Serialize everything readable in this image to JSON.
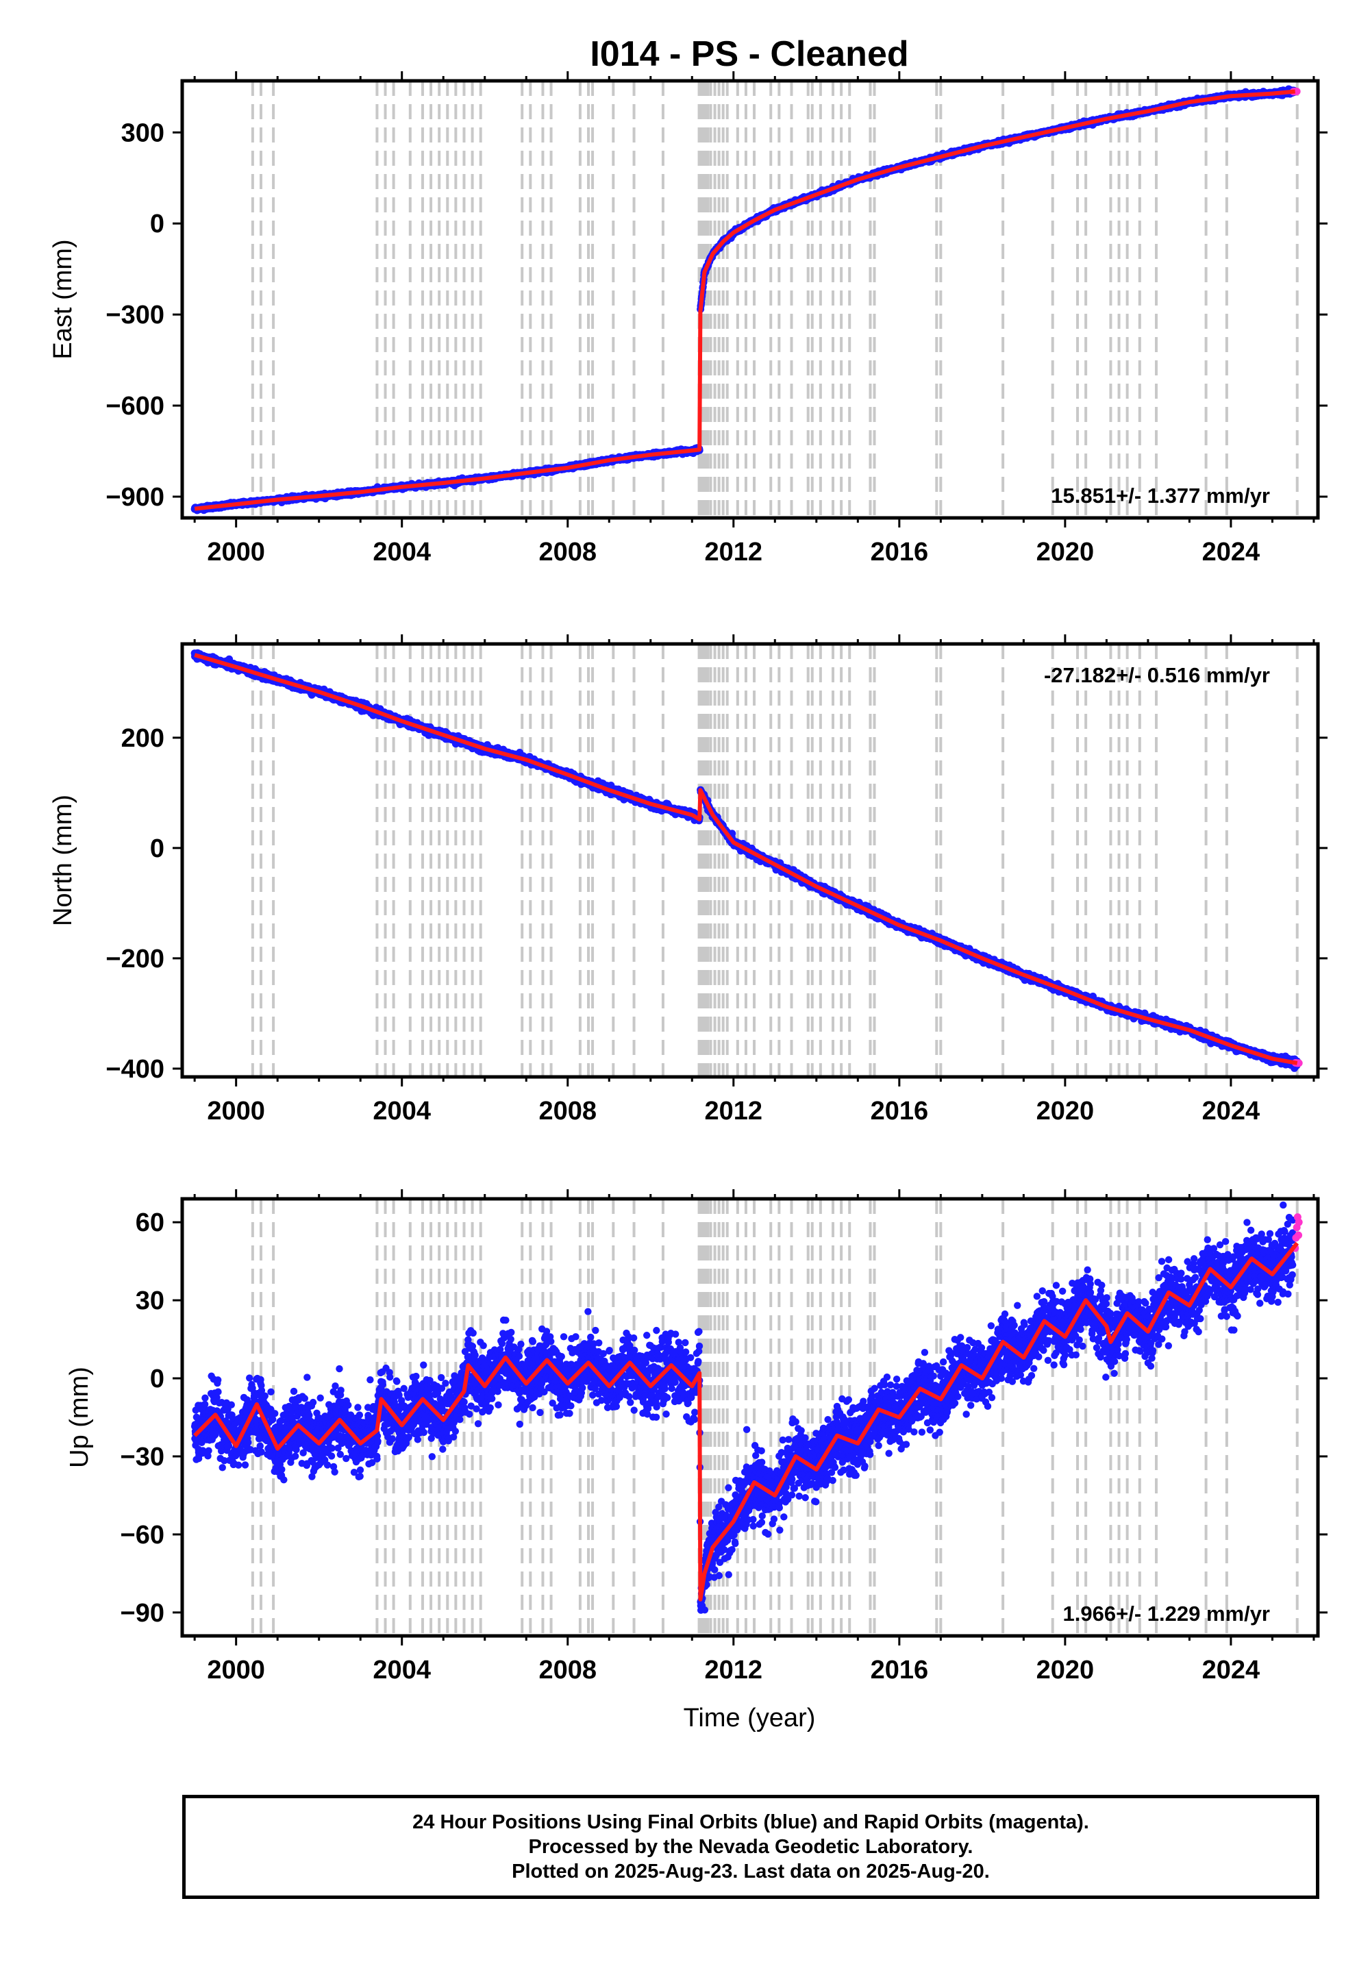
{
  "title": "I014  - PS - Cleaned",
  "colors": {
    "final_orbits": "#1a1aff",
    "rapid_orbits": "#ff33cc",
    "model": "#ff1a1a",
    "event_lines": "#c8c8c8",
    "axes": "#000000"
  },
  "caption": {
    "line1": "24 Hour Positions Using Final Orbits (blue) and Rapid Orbits (magenta).",
    "line2": "Processed by the Nevada Geodetic Laboratory.",
    "line3": "Plotted on 2025-Aug-23. Last data on 2025-Aug-20."
  },
  "event_lines_years": [
    2000.4,
    2000.6,
    2000.9,
    2003.4,
    2003.6,
    2003.8,
    2004.2,
    2004.5,
    2004.7,
    2004.9,
    2005.1,
    2005.3,
    2005.5,
    2005.7,
    2005.9,
    2006.9,
    2007.1,
    2007.4,
    2007.6,
    2008.3,
    2008.5,
    2008.6,
    2009.1,
    2009.6,
    2010.3,
    2011.17,
    2011.22,
    2011.27,
    2011.32,
    2011.38,
    2011.45,
    2011.55,
    2011.65,
    2011.75,
    2011.85,
    2012.1,
    2012.3,
    2012.5,
    2012.9,
    2013.1,
    2013.4,
    2013.8,
    2013.9,
    2014.1,
    2014.4,
    2014.6,
    2014.8,
    2015.3,
    2015.4,
    2016.9,
    2017.0,
    2018.5,
    2019.7,
    2020.3,
    2020.5,
    2021.1,
    2021.3,
    2021.5,
    2021.8,
    2022.2,
    2023.4,
    2023.9,
    2025.6
  ],
  "chart_data": [
    {
      "type": "scatter",
      "component": "east",
      "title": "I014  - PS - Cleaned",
      "xlabel": "",
      "ylabel": "East (mm)",
      "xlim": [
        1998.7,
        2026.1
      ],
      "ylim": [
        -970,
        470
      ],
      "xticks": [
        2000,
        2004,
        2008,
        2012,
        2016,
        2020,
        2024
      ],
      "xtick_labels": [
        "2000",
        "2004",
        "2008",
        "2012",
        "2016",
        "2020",
        "2024"
      ],
      "yticks": [
        -900,
        -600,
        -300,
        0,
        300
      ],
      "ytick_labels": [
        "−900",
        "−600",
        "−300",
        "0",
        "300"
      ],
      "rate_label": "15.851+/- 1.377 mm/yr",
      "series": [
        {
          "role": "daily positions (final orbits)",
          "x": [
            1999.0,
            2000.0,
            2001.0,
            2002.0,
            2003.0,
            2004.0,
            2005.0,
            2006.0,
            2007.0,
            2008.0,
            2009.0,
            2010.0,
            2011.0,
            2011.18,
            2011.2,
            2011.3,
            2011.5,
            2011.75,
            2012.0,
            2012.5,
            2013.0,
            2014.0,
            2015.0,
            2016.0,
            2017.0,
            2018.0,
            2019.0,
            2020.0,
            2021.0,
            2022.0,
            2023.0,
            2024.0,
            2025.0,
            2025.55
          ],
          "y": [
            -940,
            -925,
            -910,
            -898,
            -885,
            -868,
            -855,
            -840,
            -822,
            -805,
            -780,
            -762,
            -748,
            -745,
            -290,
            -160,
            -100,
            -60,
            -30,
            10,
            45,
            95,
            145,
            185,
            220,
            255,
            285,
            315,
            345,
            370,
            400,
            420,
            428,
            435
          ]
        },
        {
          "role": "model fit",
          "x": [
            1999.0,
            2000.0,
            2001.0,
            2002.0,
            2003.0,
            2004.0,
            2005.0,
            2006.0,
            2007.0,
            2008.0,
            2009.0,
            2010.0,
            2011.0,
            2011.18,
            2011.2,
            2011.3,
            2011.5,
            2011.75,
            2012.0,
            2012.5,
            2013.0,
            2014.0,
            2015.0,
            2016.0,
            2017.0,
            2018.0,
            2019.0,
            2020.0,
            2021.0,
            2022.0,
            2023.0,
            2024.0,
            2025.0,
            2025.55
          ],
          "y": [
            -940,
            -925,
            -910,
            -898,
            -885,
            -868,
            -855,
            -840,
            -822,
            -805,
            -780,
            -762,
            -748,
            -745,
            -290,
            -160,
            -100,
            -60,
            -30,
            10,
            45,
            95,
            145,
            185,
            220,
            255,
            285,
            315,
            345,
            370,
            400,
            420,
            428,
            435
          ]
        }
      ]
    },
    {
      "type": "scatter",
      "component": "north",
      "xlabel": "",
      "ylabel": "North (mm)",
      "xlim": [
        1998.7,
        2026.1
      ],
      "ylim": [
        -415,
        370
      ],
      "xticks": [
        2000,
        2004,
        2008,
        2012,
        2016,
        2020,
        2024
      ],
      "xtick_labels": [
        "2000",
        "2004",
        "2008",
        "2012",
        "2016",
        "2020",
        "2024"
      ],
      "yticks": [
        -400,
        -200,
        0,
        200
      ],
      "ytick_labels": [
        "−400",
        "−200",
        "0",
        "200"
      ],
      "rate_label": "-27.182+/- 0.516 mm/yr",
      "series": [
        {
          "role": "daily positions (final orbits)",
          "x": [
            1999.0,
            2000.0,
            2001.0,
            2002.0,
            2003.0,
            2004.0,
            2005.0,
            2006.0,
            2007.0,
            2008.0,
            2009.0,
            2010.0,
            2011.0,
            2011.18,
            2011.2,
            2011.5,
            2012.0,
            2013.0,
            2014.0,
            2015.0,
            2016.0,
            2017.0,
            2018.0,
            2019.0,
            2020.0,
            2021.0,
            2022.0,
            2023.0,
            2024.0,
            2025.0,
            2025.6
          ],
          "y": [
            350,
            328,
            305,
            283,
            258,
            230,
            205,
            180,
            160,
            133,
            105,
            80,
            60,
            52,
            105,
            60,
            10,
            -30,
            -70,
            -105,
            -140,
            -168,
            -200,
            -230,
            -258,
            -288,
            -310,
            -330,
            -358,
            -382,
            -390
          ]
        },
        {
          "role": "model fit",
          "x": [
            1999.0,
            2000.0,
            2001.0,
            2002.0,
            2003.0,
            2004.0,
            2005.0,
            2006.0,
            2007.0,
            2008.0,
            2009.0,
            2010.0,
            2011.0,
            2011.18,
            2011.2,
            2011.5,
            2012.0,
            2013.0,
            2014.0,
            2015.0,
            2016.0,
            2017.0,
            2018.0,
            2019.0,
            2020.0,
            2021.0,
            2022.0,
            2023.0,
            2024.0,
            2025.0,
            2025.6
          ],
          "y": [
            350,
            328,
            305,
            283,
            258,
            230,
            205,
            180,
            160,
            133,
            105,
            80,
            60,
            52,
            105,
            60,
            10,
            -30,
            -70,
            -105,
            -140,
            -168,
            -200,
            -230,
            -258,
            -288,
            -310,
            -330,
            -358,
            -382,
            -390
          ]
        }
      ]
    },
    {
      "type": "scatter",
      "component": "up",
      "xlabel": "Time (year)",
      "ylabel": "Up (mm)",
      "xlim": [
        1998.7,
        2026.1
      ],
      "ylim": [
        -99,
        69
      ],
      "xticks": [
        2000,
        2004,
        2008,
        2012,
        2016,
        2020,
        2024
      ],
      "xtick_labels": [
        "2000",
        "2004",
        "2008",
        "2012",
        "2016",
        "2020",
        "2024"
      ],
      "yticks": [
        -90,
        -60,
        -30,
        0,
        30,
        60
      ],
      "ytick_labels": [
        "−90",
        "−60",
        "−30",
        "0",
        "30",
        "60"
      ],
      "rate_label": "1.966+/- 1.229 mm/yr",
      "series": [
        {
          "role": "model fit",
          "x": [
            1999.0,
            1999.5,
            2000.0,
            2000.5,
            2001.0,
            2001.5,
            2002.0,
            2002.5,
            2003.0,
            2003.4,
            2003.5,
            2004.0,
            2004.5,
            2005.0,
            2005.5,
            2005.6,
            2006.0,
            2006.5,
            2007.0,
            2007.5,
            2008.0,
            2008.5,
            2009.0,
            2009.5,
            2010.0,
            2010.5,
            2011.0,
            2011.18,
            2011.2,
            2011.3,
            2011.5,
            2012.0,
            2012.5,
            2013.0,
            2013.5,
            2014.0,
            2014.5,
            2015.0,
            2015.5,
            2016.0,
            2016.5,
            2017.0,
            2017.5,
            2018.0,
            2018.5,
            2019.0,
            2019.5,
            2020.0,
            2020.5,
            2021.0,
            2021.1,
            2021.5,
            2022.0,
            2022.5,
            2023.0,
            2023.5,
            2024.0,
            2024.5,
            2025.0,
            2025.6
          ],
          "y": [
            -22,
            -14,
            -26,
            -10,
            -27,
            -18,
            -25,
            -16,
            -25,
            -20,
            -8,
            -18,
            -8,
            -16,
            -5,
            5,
            -3,
            8,
            -2,
            7,
            -2,
            6,
            -3,
            6,
            -3,
            5,
            -3,
            2,
            -85,
            -75,
            -65,
            -55,
            -40,
            -45,
            -30,
            -35,
            -22,
            -25,
            -12,
            -15,
            -4,
            -8,
            5,
            0,
            14,
            8,
            22,
            16,
            30,
            20,
            14,
            25,
            18,
            33,
            28,
            42,
            35,
            46,
            40,
            52
          ]
        }
      ],
      "final_orbit_points": {
        "x": [
          1999.0,
          1999.5,
          2000.0,
          2000.5,
          2001.0,
          2001.5,
          2002.0,
          2002.5,
          2003.0,
          2003.4,
          2003.5,
          2004.0,
          2004.5,
          2005.0,
          2005.5,
          2005.6,
          2006.0,
          2006.5,
          2007.0,
          2007.5,
          2008.0,
          2008.5,
          2009.0,
          2009.5,
          2010.0,
          2010.5,
          2011.0,
          2011.18,
          2011.2,
          2011.3,
          2011.5,
          2012.0,
          2012.5,
          2013.0,
          2013.5,
          2014.0,
          2014.5,
          2015.0,
          2015.5,
          2016.0,
          2016.5,
          2017.0,
          2017.5,
          2018.0,
          2018.5,
          2019.0,
          2019.5,
          2020.0,
          2020.5,
          2021.0,
          2021.1,
          2021.5,
          2022.0,
          2022.5,
          2023.0,
          2023.5,
          2024.0,
          2024.5,
          2025.0,
          2025.5
        ],
        "y": [
          -22,
          -14,
          -26,
          -10,
          -27,
          -18,
          -25,
          -16,
          -25,
          -20,
          -8,
          -18,
          -8,
          -16,
          -5,
          5,
          -3,
          8,
          -2,
          7,
          -2,
          6,
          -3,
          6,
          -3,
          5,
          -3,
          2,
          -85,
          -75,
          -65,
          -55,
          -40,
          -45,
          -30,
          -35,
          -22,
          -25,
          -12,
          -15,
          -4,
          -8,
          5,
          0,
          14,
          8,
          22,
          16,
          30,
          20,
          14,
          25,
          18,
          33,
          28,
          42,
          35,
          46,
          40,
          50
        ],
        "scatter_mm": 9
      },
      "rapid_orbit_points": {
        "x": [
          2025.55,
          2025.57,
          2025.59,
          2025.61,
          2025.63,
          2025.64
        ],
        "y": [
          50,
          54,
          58,
          62,
          55,
          60
        ]
      }
    }
  ]
}
